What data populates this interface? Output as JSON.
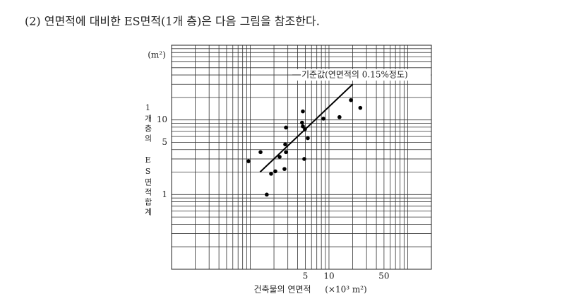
{
  "heading": "(2) 연면적에 대비한 ES면적(1개 층)은 다음 그림을 참조한다.",
  "chart_data": {
    "type": "scatter",
    "y_unit": "(m²)",
    "ylabel": "1개층의 ES면적합계",
    "xlabel": "건축물의 연면적",
    "x_unit": "(×10³ m²)",
    "annotation": "기준값(연면적의 0.15%정도)",
    "log_x": true,
    "log_y": true,
    "grid": true,
    "color": "#000000",
    "xlim": [
      0.1,
      200
    ],
    "ylim": [
      0.1,
      100
    ],
    "xticks": [
      5,
      10,
      50
    ],
    "yticks": [
      1,
      5,
      10
    ],
    "xgrid": [
      0.1,
      0.2,
      0.3,
      0.4,
      0.5,
      0.6,
      0.7,
      0.8,
      0.9,
      1,
      2,
      3,
      4,
      5,
      6,
      7,
      8,
      9,
      10,
      20,
      30,
      40,
      50,
      60,
      70,
      80,
      90,
      100,
      200
    ],
    "ygrid": [
      0.1,
      0.2,
      0.3,
      0.4,
      0.5,
      0.6,
      0.7,
      0.8,
      0.9,
      1,
      2,
      3,
      4,
      5,
      6,
      7,
      8,
      9,
      10,
      20,
      30,
      40,
      50,
      60,
      70,
      80,
      90,
      100
    ],
    "x": [
      0.95,
      1.35,
      1.62,
      1.84,
      2.08,
      2.36,
      2.72,
      2.78,
      2.84,
      2.84,
      4.66,
      4.55,
      4.66,
      4.95,
      4.85,
      5.38,
      8.5,
      13.6,
      19,
      25
    ],
    "values": [
      2.8,
      3.7,
      1,
      1.9,
      2.05,
      3.2,
      2.2,
      4.7,
      3.7,
      7.9,
      13,
      9.2,
      8.2,
      7.5,
      3.0,
      5.7,
      10.4,
      10.9,
      18.4,
      14.5
    ],
    "reference_line": {
      "x": [
        1.33,
        20
      ],
      "y": [
        2,
        30
      ]
    }
  }
}
